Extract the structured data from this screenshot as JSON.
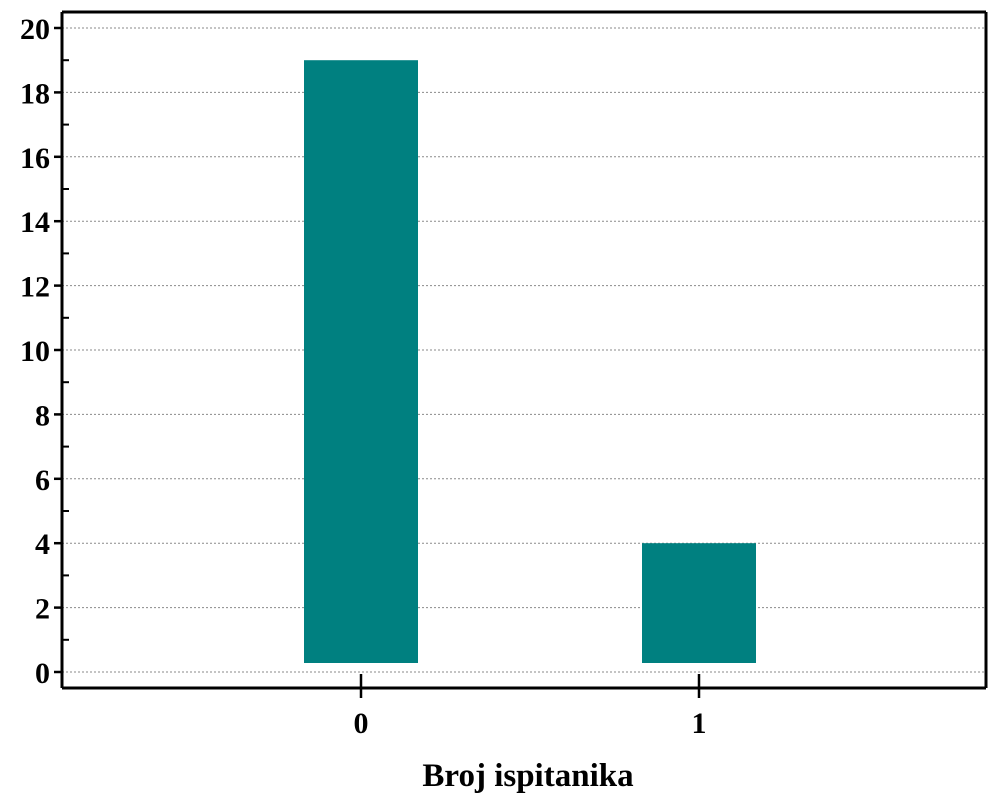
{
  "chart_data": {
    "type": "bar",
    "categories": [
      "0",
      "1"
    ],
    "values": [
      19,
      4
    ],
    "xlabel": "Broj ispitanika",
    "ylabel": "",
    "ylim": [
      0,
      20
    ],
    "yticks": [
      0,
      2,
      4,
      6,
      8,
      10,
      12,
      14,
      16,
      18,
      20
    ],
    "grid": "horizontal dotted",
    "bar_color": "#008080",
    "legend": "none"
  }
}
